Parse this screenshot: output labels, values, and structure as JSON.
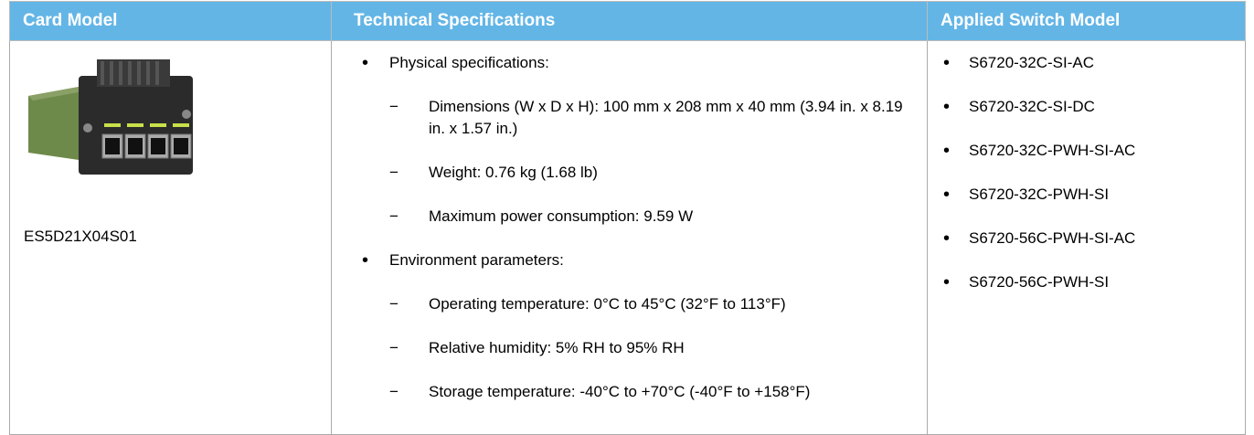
{
  "table": {
    "header": [
      "Card Model",
      "Technical Specifications",
      "Applied Switch Model"
    ],
    "rows": [
      {
        "card_model": "ES5D21X04S01",
        "specs": [
          {
            "label": "Physical specifications:",
            "items": [
              "Dimensions (W x D x H): 100 mm x 208 mm x 40 mm (3.94 in. x 8.19 in. x 1.57 in.)",
              "Weight: 0.76 kg (1.68 lb)",
              "Maximum power consumption: 9.59 W"
            ]
          },
          {
            "label": "Environment parameters:",
            "items": [
              "Operating temperature: 0°C to 45°C (32°F to 113°F)",
              "Relative humidity: 5% RH to 95% RH",
              "Storage temperature: -40°C to +70°C (-40°F to +158°F)"
            ]
          }
        ],
        "switch_models": [
          "S6720-32C-SI-AC",
          "S6720-32C-SI-DC",
          "S6720-32C-PWH-SI-AC",
          "S6720-32C-PWH-SI",
          "S6720-56C-PWH-SI-AC",
          "S6720-56C-PWH-SI"
        ]
      }
    ]
  }
}
